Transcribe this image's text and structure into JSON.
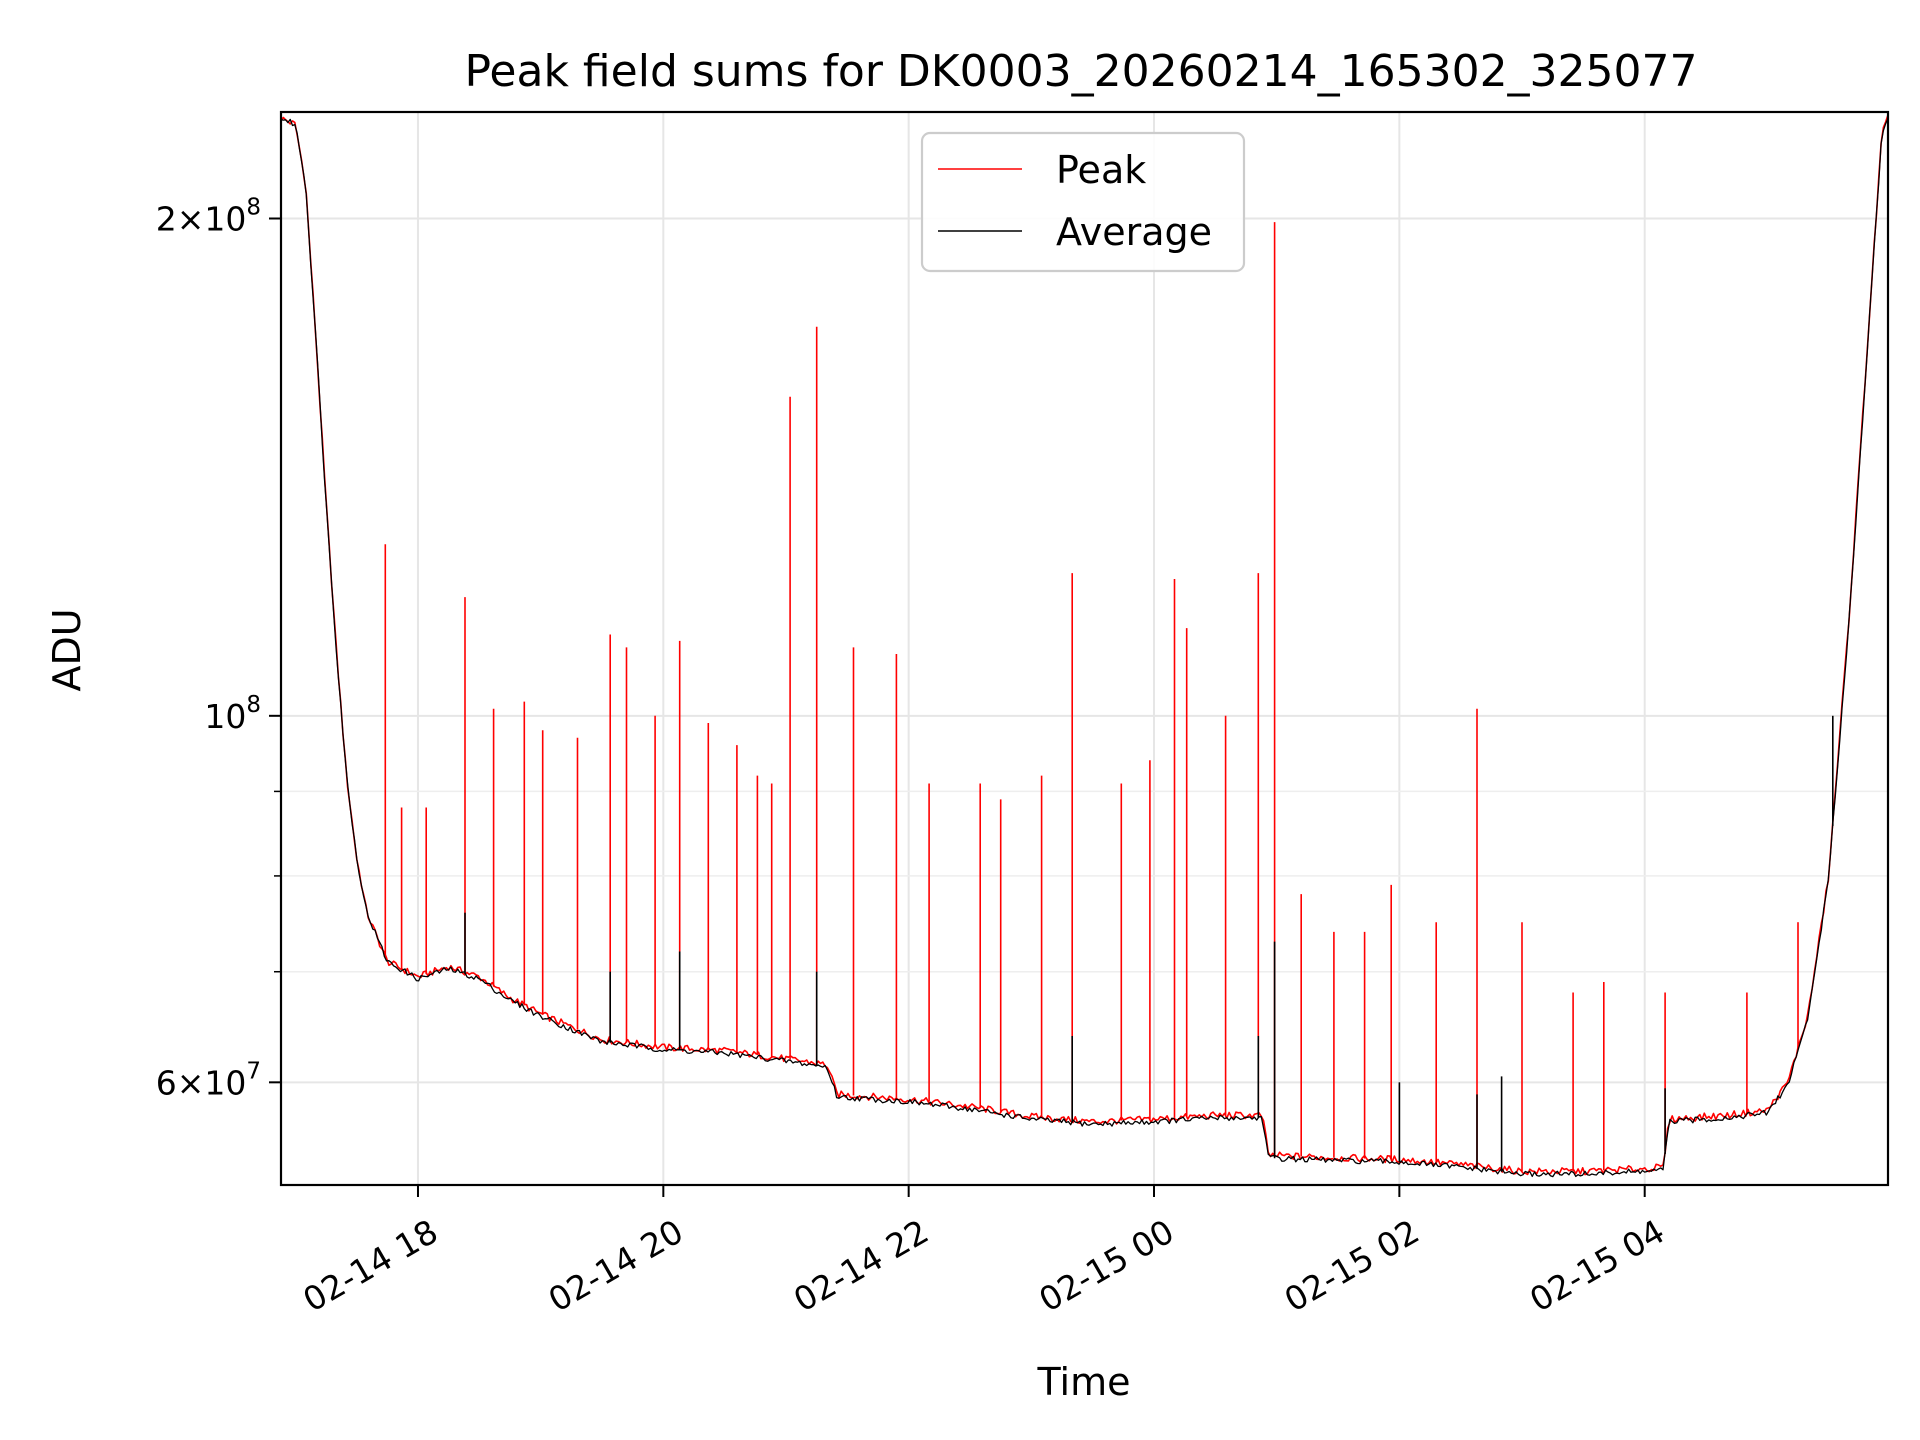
{
  "chart_data": {
    "type": "line",
    "title": "Peak field sums for DK0003_20260214_165302_325077",
    "xlabel": "Time",
    "ylabel": "ADU",
    "x_unit": "hours",
    "xlim": [
      "02-14 16:53",
      "02-15 05:59"
    ],
    "ylim": [
      52000000,
      232000000
    ],
    "y_scale": "log",
    "grid": true,
    "legend": {
      "placement": "top-center"
    },
    "x_ticks": [
      {
        "label": "02-14 18",
        "value": "02-14 18:00"
      },
      {
        "label": "02-14 20",
        "value": "02-14 20:00"
      },
      {
        "label": "02-14 22",
        "value": "02-14 22:00"
      },
      {
        "label": "02-15 00",
        "value": "02-15 00:00"
      },
      {
        "label": "02-15 02",
        "value": "02-15 02:00"
      },
      {
        "label": "02-15 04",
        "value": "02-15 04:00"
      }
    ],
    "y_ticks": [
      {
        "label": "2×10⁸",
        "base": "2×10",
        "exp": "8",
        "value": 200000000
      },
      {
        "label": "10⁸",
        "base": "10",
        "exp": "8",
        "value": 100000000
      },
      {
        "label": "6×10⁷",
        "base": "6×10",
        "exp": "7",
        "value": 60000000
      }
    ],
    "y_minor_ticks": [
      70000000,
      80000000,
      90000000
    ],
    "series": [
      {
        "name": "Peak",
        "color": "#ff0000",
        "baseline": [
          [
            "02-14 16:53",
            230000000
          ],
          [
            "02-14 17:00",
            228000000
          ],
          [
            "02-14 17:05",
            210000000
          ],
          [
            "02-14 17:10",
            170000000
          ],
          [
            "02-14 17:15",
            135000000
          ],
          [
            "02-14 17:20",
            110000000
          ],
          [
            "02-14 17:25",
            92000000
          ],
          [
            "02-14 17:30",
            82000000
          ],
          [
            "02-14 17:35",
            76000000
          ],
          [
            "02-14 17:45",
            71000000
          ],
          [
            "02-14 18:00",
            69500000
          ],
          [
            "02-14 18:15",
            70500000
          ],
          [
            "02-14 18:30",
            69500000
          ],
          [
            "02-14 18:45",
            67500000
          ],
          [
            "02-14 19:00",
            66000000
          ],
          [
            "02-14 19:15",
            64800000
          ],
          [
            "02-14 19:30",
            63700000
          ],
          [
            "02-14 20:00",
            63000000
          ],
          [
            "02-14 20:30",
            62700000
          ],
          [
            "02-14 21:00",
            62000000
          ],
          [
            "02-14 21:20",
            61500000
          ],
          [
            "02-14 21:25",
            59000000
          ],
          [
            "02-14 22:00",
            58600000
          ],
          [
            "02-14 22:30",
            58000000
          ],
          [
            "02-14 23:00",
            57200000
          ],
          [
            "02-14 23:30",
            56800000
          ],
          [
            "02-15 00:00",
            57000000
          ],
          [
            "02-15 00:30",
            57300000
          ],
          [
            "02-15 00:53",
            57300000
          ],
          [
            "02-15 00:56",
            54200000
          ],
          [
            "02-15 01:30",
            54000000
          ],
          [
            "02-15 02:00",
            53900000
          ],
          [
            "02-15 02:30",
            53500000
          ],
          [
            "02-15 03:00",
            53000000
          ],
          [
            "02-15 03:30",
            53000000
          ],
          [
            "02-15 04:00",
            53200000
          ],
          [
            "02-15 04:09",
            53300000
          ],
          [
            "02-15 04:12",
            57000000
          ],
          [
            "02-15 04:40",
            57300000
          ],
          [
            "02-15 05:00",
            57700000
          ],
          [
            "02-15 05:10",
            60000000
          ],
          [
            "02-15 05:20",
            66000000
          ],
          [
            "02-15 05:30",
            80000000
          ],
          [
            "02-15 05:40",
            115000000
          ],
          [
            "02-15 05:50",
            175000000
          ],
          [
            "02-15 05:56",
            225000000
          ],
          [
            "02-15 05:59",
            230000000
          ]
        ],
        "spikes": [
          [
            "02-14 17:44",
            127000000
          ],
          [
            "02-14 17:52",
            88000000
          ],
          [
            "02-14 18:04",
            88000000
          ],
          [
            "02-14 18:23",
            118000000
          ],
          [
            "02-14 18:37",
            101000000
          ],
          [
            "02-14 18:52",
            102000000
          ],
          [
            "02-14 19:01",
            98000000
          ],
          [
            "02-14 19:18",
            97000000
          ],
          [
            "02-14 19:34",
            112000000
          ],
          [
            "02-14 19:42",
            110000000
          ],
          [
            "02-14 19:56",
            100000000
          ],
          [
            "02-14 20:08",
            111000000
          ],
          [
            "02-14 20:22",
            99000000
          ],
          [
            "02-14 20:36",
            96000000
          ],
          [
            "02-14 20:46",
            92000000
          ],
          [
            "02-14 20:53",
            91000000
          ],
          [
            "02-14 21:02",
            156000000
          ],
          [
            "02-14 21:15",
            172000000
          ],
          [
            "02-14 21:33",
            110000000
          ],
          [
            "02-14 21:54",
            109000000
          ],
          [
            "02-14 22:10",
            91000000
          ],
          [
            "02-14 22:35",
            91000000
          ],
          [
            "02-14 22:45",
            89000000
          ],
          [
            "02-14 23:05",
            92000000
          ],
          [
            "02-14 23:20",
            122000000
          ],
          [
            "02-14 23:44",
            91000000
          ],
          [
            "02-14 23:58",
            94000000
          ],
          [
            "02-15 00:10",
            121000000
          ],
          [
            "02-15 00:16",
            113000000
          ],
          [
            "02-15 00:35",
            100000000
          ],
          [
            "02-15 00:51",
            122000000
          ],
          [
            "02-15 00:59",
            199000000
          ],
          [
            "02-15 01:12",
            78000000
          ],
          [
            "02-15 01:28",
            74000000
          ],
          [
            "02-15 01:43",
            74000000
          ],
          [
            "02-15 01:56",
            79000000
          ],
          [
            "02-15 02:18",
            75000000
          ],
          [
            "02-15 02:38",
            101000000
          ],
          [
            "02-15 03:00",
            75000000
          ],
          [
            "02-15 03:25",
            68000000
          ],
          [
            "02-15 03:40",
            69000000
          ],
          [
            "02-15 04:10",
            68000000
          ],
          [
            "02-15 04:50",
            68000000
          ],
          [
            "02-15 05:15",
            75000000
          ]
        ]
      },
      {
        "name": "Average",
        "color": "#000000",
        "baseline": [
          [
            "02-14 16:53",
            230000000
          ],
          [
            "02-14 17:00",
            228000000
          ],
          [
            "02-14 17:05",
            210000000
          ],
          [
            "02-14 17:10",
            170000000
          ],
          [
            "02-14 17:15",
            135000000
          ],
          [
            "02-14 17:20",
            110000000
          ],
          [
            "02-14 17:25",
            92000000
          ],
          [
            "02-14 17:30",
            82000000
          ],
          [
            "02-14 17:35",
            76000000
          ],
          [
            "02-14 17:45",
            71000000
          ],
          [
            "02-14 18:00",
            69300000
          ],
          [
            "02-14 18:15",
            70300000
          ],
          [
            "02-14 18:30",
            69300000
          ],
          [
            "02-14 18:45",
            67300000
          ],
          [
            "02-14 19:00",
            65800000
          ],
          [
            "02-14 19:15",
            64600000
          ],
          [
            "02-14 19:30",
            63500000
          ],
          [
            "02-14 20:00",
            62800000
          ],
          [
            "02-14 20:30",
            62500000
          ],
          [
            "02-14 21:00",
            61800000
          ],
          [
            "02-14 21:20",
            61300000
          ],
          [
            "02-14 21:25",
            58800000
          ],
          [
            "02-14 22:00",
            58400000
          ],
          [
            "02-14 22:30",
            57800000
          ],
          [
            "02-14 23:00",
            57000000
          ],
          [
            "02-14 23:30",
            56600000
          ],
          [
            "02-15 00:00",
            56800000
          ],
          [
            "02-15 00:30",
            57100000
          ],
          [
            "02-15 00:53",
            57100000
          ],
          [
            "02-15 00:56",
            54000000
          ],
          [
            "02-15 01:30",
            53800000
          ],
          [
            "02-15 02:00",
            53700000
          ],
          [
            "02-15 02:30",
            53300000
          ],
          [
            "02-15 03:00",
            52800000
          ],
          [
            "02-15 03:30",
            52800000
          ],
          [
            "02-15 04:00",
            53000000
          ],
          [
            "02-15 04:09",
            53100000
          ],
          [
            "02-15 04:12",
            56800000
          ],
          [
            "02-15 04:40",
            57100000
          ],
          [
            "02-15 05:00",
            57500000
          ],
          [
            "02-15 05:10",
            59800000
          ],
          [
            "02-15 05:20",
            65800000
          ],
          [
            "02-15 05:30",
            79800000
          ],
          [
            "02-15 05:40",
            114500000
          ],
          [
            "02-15 05:50",
            174500000
          ],
          [
            "02-15 05:56",
            225000000
          ],
          [
            "02-15 05:59",
            230000000
          ]
        ],
        "spikes": [
          [
            "02-14 18:23",
            76000000
          ],
          [
            "02-14 19:34",
            70000000
          ],
          [
            "02-14 20:08",
            72000000
          ],
          [
            "02-14 21:15",
            70000000
          ],
          [
            "02-14 23:20",
            64000000
          ],
          [
            "02-15 00:51",
            64000000
          ],
          [
            "02-15 00:59",
            73000000
          ],
          [
            "02-15 02:00",
            60000000
          ],
          [
            "02-15 02:38",
            59000000
          ],
          [
            "02-15 02:50",
            60500000
          ],
          [
            "02-15 04:10",
            59500000
          ],
          [
            "02-15 05:32",
            100000000
          ]
        ]
      }
    ]
  }
}
